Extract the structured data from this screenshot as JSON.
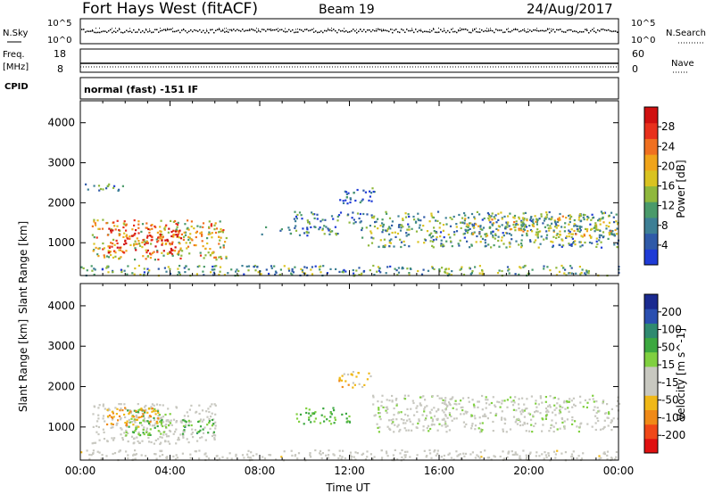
{
  "header": {
    "station": "Fort Hays West (fitACF)",
    "beam": "Beam 19",
    "date": "24/Aug/2017"
  },
  "strips": {
    "nsky": {
      "label": "N.Sky",
      "ticks": [
        "10^5",
        "10^0"
      ],
      "right_label": "N.Search",
      "right_ticks": [
        "10^5",
        "10^0"
      ]
    },
    "freq": {
      "label_line1": "Freq.",
      "label_line2": "[MHz]",
      "ticks": [
        "18",
        "8"
      ],
      "right_label": "Nave",
      "right_ticks": [
        "60",
        "0"
      ]
    },
    "cpid": {
      "label": "CPID",
      "text": "normal (fast) -151 IF"
    }
  },
  "chart_data": [
    {
      "type": "heatmap",
      "name": "power",
      "ylabel": "Slant Range [km]",
      "yticks": [
        "4000",
        "3000",
        "2000",
        "1000"
      ],
      "ylim": [
        180,
        4550
      ],
      "xlim": [
        0,
        24
      ],
      "colorbar": {
        "label": "Power [dB]",
        "ticks": [
          "28",
          "24",
          "20",
          "16",
          "12",
          "8",
          "4"
        ],
        "range": [
          0,
          30
        ],
        "colors": [
          "#1f3bd6",
          "#2f5aa8",
          "#3d7f95",
          "#4a9a6a",
          "#8fb83d",
          "#d9c321",
          "#f0a41a",
          "#f07020",
          "#e8301c",
          "#d01010"
        ]
      },
      "regions": [
        {
          "t0": 0.2,
          "t1": 2.0,
          "r0": 2300,
          "r1": 2500,
          "level": 8
        },
        {
          "t0": 0.5,
          "t1": 6.5,
          "r0": 600,
          "r1": 1600,
          "level": 18
        },
        {
          "t0": 1.2,
          "t1": 4.5,
          "r0": 750,
          "r1": 1400,
          "level": 26
        },
        {
          "t0": 8.0,
          "t1": 11.5,
          "r0": 1200,
          "r1": 1450,
          "level": 8
        },
        {
          "t0": 9.5,
          "t1": 12.5,
          "r0": 1500,
          "r1": 1800,
          "level": 6
        },
        {
          "t0": 11.5,
          "t1": 13.2,
          "r0": 2000,
          "r1": 2400,
          "level": 6
        },
        {
          "t0": 12.5,
          "t1": 24.0,
          "r0": 900,
          "r1": 1800,
          "level": 10
        },
        {
          "t0": 17.0,
          "t1": 24.0,
          "r0": 1200,
          "r1": 1700,
          "level": 14
        },
        {
          "t0": 0.0,
          "t1": 24.0,
          "r0": 200,
          "r1": 450,
          "level": 10
        }
      ]
    },
    {
      "type": "heatmap",
      "name": "velocity",
      "xlabel": "Time UT",
      "ylabel": "Slant Range [km]",
      "xticks": [
        "00:00",
        "04:00",
        "08:00",
        "12:00",
        "16:00",
        "20:00",
        "00:00"
      ],
      "yticks": [
        "4000",
        "3000",
        "2000",
        "1000"
      ],
      "ylim": [
        180,
        4550
      ],
      "xlim": [
        0,
        24
      ],
      "colorbar": {
        "label": "Velocity [m s^-1]",
        "ticks": [
          "200",
          "100",
          "50",
          "15",
          "-15",
          "-50",
          "-100",
          "-200"
        ],
        "range": [
          -250,
          250
        ],
        "colors": [
          "#e01010",
          "#f04818",
          "#f08a18",
          "#f0b818",
          "#c8c8c0",
          "#c8c8c0",
          "#80d040",
          "#3ca840",
          "#2f8a70",
          "#2a4fb0",
          "#1a2a90"
        ]
      },
      "regions": [
        {
          "t0": 0.5,
          "t1": 6.0,
          "r0": 600,
          "r1": 1600,
          "level": -20
        },
        {
          "t0": 2.0,
          "t1": 4.0,
          "r0": 800,
          "r1": 1500,
          "level": 60
        },
        {
          "t0": 4.5,
          "t1": 6.0,
          "r0": 800,
          "r1": 1200,
          "level": 80
        },
        {
          "t0": 1.0,
          "t1": 3.5,
          "r0": 1000,
          "r1": 1500,
          "level": -120
        },
        {
          "t0": 9.5,
          "t1": 12.0,
          "r0": 1100,
          "r1": 1500,
          "level": 70
        },
        {
          "t0": 11.5,
          "t1": 13.0,
          "r0": 2000,
          "r1": 2400,
          "level": -80
        },
        {
          "t0": 13.0,
          "t1": 24.0,
          "r0": 900,
          "r1": 1800,
          "level": 0
        },
        {
          "t0": 0.0,
          "t1": 24.0,
          "r0": 200,
          "r1": 450,
          "level": -30
        }
      ]
    }
  ]
}
